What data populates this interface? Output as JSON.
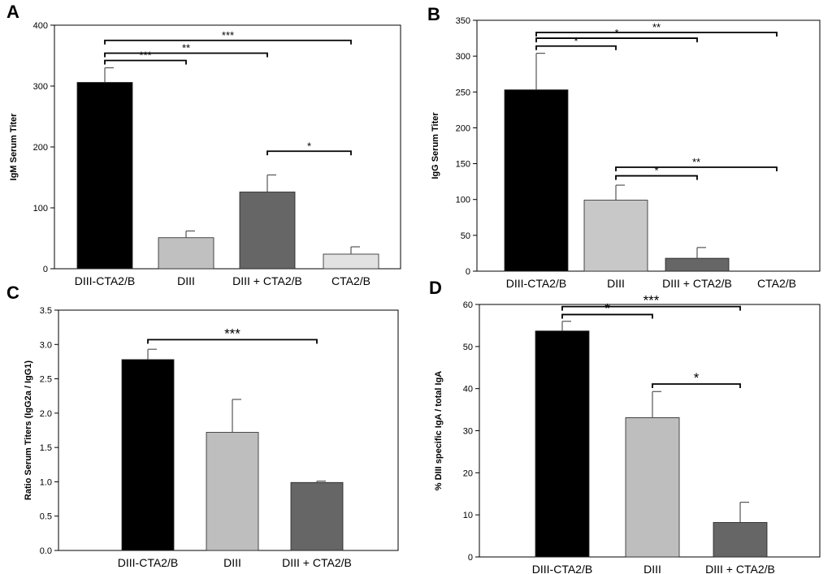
{
  "chart_data": [
    {
      "panel": "A",
      "type": "bar",
      "categories": [
        "DIII-CTA2/B",
        "DIII",
        "DIII + CTA2/B",
        "CTA2/B"
      ],
      "values": [
        306,
        51,
        126,
        24
      ],
      "errors": [
        24,
        11,
        28,
        12
      ],
      "colors": [
        "#000000",
        "#c0c0c0",
        "#666666",
        "#e2e2e2"
      ],
      "ylabel": "IgM Serum Titer",
      "ylim": [
        0,
        400
      ],
      "yticks": [
        "0",
        "100",
        "200",
        "300",
        "400"
      ],
      "ytick_values": [
        0,
        100,
        200,
        300,
        400
      ],
      "significance": [
        {
          "from": 0,
          "to": 3,
          "y": 375,
          "label": "***"
        },
        {
          "from": 0,
          "to": 2,
          "y": 354,
          "label": "**"
        },
        {
          "from": 0,
          "to": 1,
          "y": 342,
          "label": "***"
        },
        {
          "from": 2,
          "to": 3,
          "y": 193,
          "label": "*"
        }
      ]
    },
    {
      "panel": "B",
      "type": "bar",
      "categories": [
        "DIII-CTA2/B",
        "DIII",
        "DIII + CTA2/B",
        "CTA2/B"
      ],
      "values": [
        253,
        99,
        18,
        0
      ],
      "errors": [
        51,
        21,
        15,
        0
      ],
      "colors": [
        "#000000",
        "#c8c8c8",
        "#666666",
        "#e2e2e2"
      ],
      "ylabel": "IgG Serum Titer",
      "ylim": [
        0,
        350
      ],
      "yticks": [
        "0",
        "50",
        "100",
        "150",
        "200",
        "250",
        "300",
        "350"
      ],
      "ytick_values": [
        0,
        50,
        100,
        150,
        200,
        250,
        300,
        350
      ],
      "significance": [
        {
          "from": 0,
          "to": 3,
          "y": 333,
          "label": "**"
        },
        {
          "from": 0,
          "to": 2,
          "y": 325,
          "label": "*"
        },
        {
          "from": 0,
          "to": 1,
          "y": 314,
          "label": "*"
        },
        {
          "from": 1,
          "to": 3,
          "y": 145,
          "label": "**"
        },
        {
          "from": 1,
          "to": 2,
          "y": 133,
          "label": "*"
        }
      ]
    },
    {
      "panel": "C",
      "type": "bar",
      "categories": [
        "DIII-CTA2/B",
        "DIII",
        "DIII + CTA2/B"
      ],
      "values": [
        2.78,
        1.72,
        0.99
      ],
      "errors": [
        0.15,
        0.48,
        0.02
      ],
      "colors": [
        "#000000",
        "#bebebe",
        "#666666"
      ],
      "ylabel": "Ratio Serum Titers (IgG2a / IgG1)",
      "ylim": [
        0,
        3.5
      ],
      "yticks": [
        "0.0",
        "0.5",
        "1.0",
        "1.5",
        "2.0",
        "2.5",
        "3.0",
        "3.5"
      ],
      "ytick_values": [
        0,
        0.5,
        1,
        1.5,
        2,
        2.5,
        3,
        3.5
      ],
      "significance": [
        {
          "from": 0,
          "to": 2,
          "y": 3.07,
          "label": "***"
        }
      ]
    },
    {
      "panel": "D",
      "type": "bar",
      "categories": [
        "DIII-CTA2/B",
        "DIII",
        "DIII + CTA2/B"
      ],
      "values": [
        53.7,
        33.1,
        8.2
      ],
      "errors": [
        2.3,
        6.2,
        4.8
      ],
      "colors": [
        "#000000",
        "#bebebe",
        "#666666"
      ],
      "ylabel": "% DIII specific IgA / total IgA",
      "ylim": [
        0,
        60
      ],
      "yticks": [
        "0",
        "10",
        "20",
        "30",
        "40",
        "50",
        "60"
      ],
      "ytick_values": [
        0,
        10,
        20,
        30,
        40,
        50,
        60
      ],
      "significance": [
        {
          "from": 0,
          "to": 2,
          "y": 59.5,
          "label": "***"
        },
        {
          "from": 0,
          "to": 1,
          "y": 57.6,
          "label": "*"
        },
        {
          "from": 1,
          "to": 2,
          "y": 41.1,
          "label": "*"
        }
      ]
    }
  ]
}
